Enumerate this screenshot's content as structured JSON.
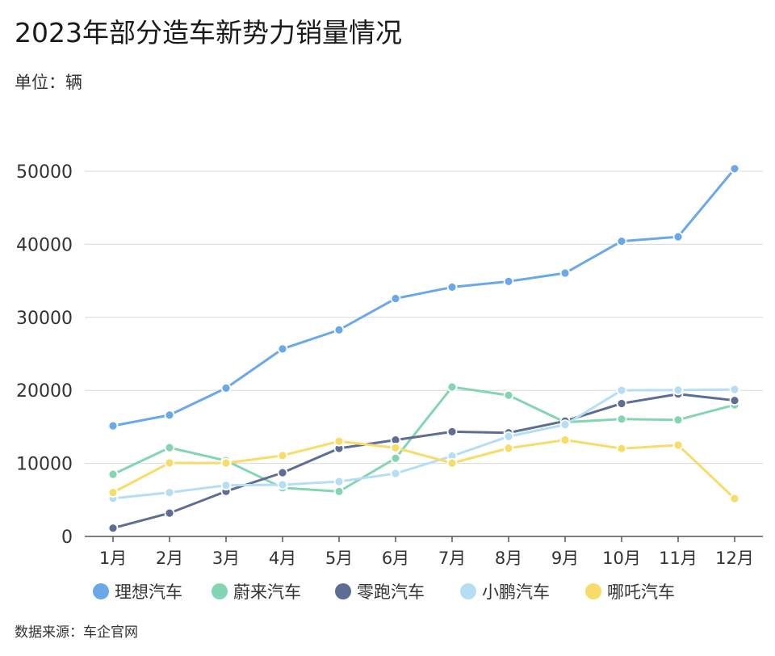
{
  "title": "2023年部分造车新势力销量情况",
  "unit": "单位：辆",
  "source": "数据来源：车企官网",
  "chart_data": {
    "type": "line",
    "title": "2023年部分造车新势力销量情况",
    "xlabel": "",
    "ylabel": "",
    "categories": [
      "1月",
      "2月",
      "3月",
      "4月",
      "5月",
      "6月",
      "7月",
      "8月",
      "9月",
      "10月",
      "11月",
      "12月"
    ],
    "ylim": [
      0,
      50000
    ],
    "yticks": [
      0,
      10000,
      20000,
      30000,
      40000,
      50000
    ],
    "grid": true,
    "legend": "bottom",
    "series": [
      {
        "name": "理想汽车",
        "color": "#6aa8ea",
        "values": [
          15141,
          16620,
          20312,
          25681,
          28277,
          32575,
          34134,
          34914,
          36060,
          40422,
          41030,
          50353
        ]
      },
      {
        "name": "蔚来汽车",
        "color": "#84d6b2",
        "values": [
          8506,
          12157,
          10378,
          6658,
          6155,
          10707,
          20462,
          19329,
          15641,
          16074,
          15959,
          18012
        ]
      },
      {
        "name": "零跑汽车",
        "color": "#5d6d94",
        "values": [
          1139,
          3198,
          6172,
          8726,
          12058,
          13209,
          14335,
          14190,
          15800,
          18202,
          19501,
          18618
        ]
      },
      {
        "name": "小鹏汽车",
        "color": "#b5def5",
        "values": [
          5218,
          6010,
          7002,
          7079,
          7506,
          8620,
          11008,
          13690,
          15310,
          20002,
          20041,
          20115
        ]
      },
      {
        "name": "哪吒汽车",
        "color": "#f8dc6a",
        "values": [
          6016,
          10073,
          10049,
          11080,
          13029,
          12132,
          10039,
          12084,
          13208,
          12036,
          12507,
          5182
        ]
      }
    ]
  }
}
